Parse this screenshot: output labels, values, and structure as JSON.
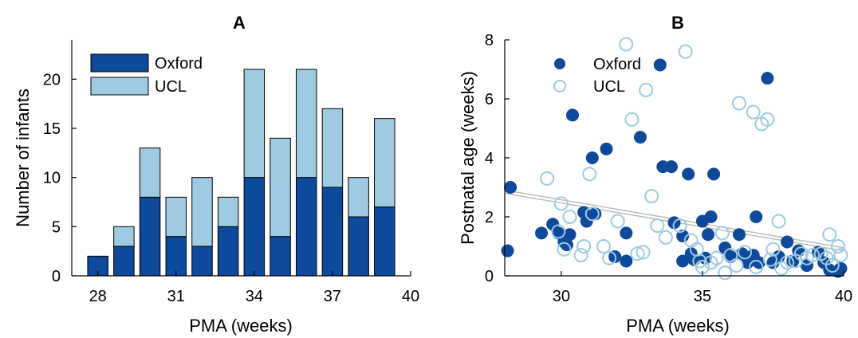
{
  "colors": {
    "oxford": "#0d4a9b",
    "ucl": "#9ecbe1",
    "fit_line": "#bdbdbd"
  },
  "chart_data": [
    {
      "type": "bar",
      "stacked": true,
      "title": "A",
      "xlabel": "PMA (weeks)",
      "ylabel": "Number of infants",
      "x": [
        28,
        29,
        30,
        31,
        32,
        33,
        34,
        35,
        36,
        37,
        38,
        39
      ],
      "xlim": [
        27,
        40
      ],
      "ylim": [
        0,
        24
      ],
      "xticks": [
        28,
        31,
        34,
        37,
        40
      ],
      "yticks": [
        0,
        5,
        10,
        15,
        20
      ],
      "legend_position": "top-left",
      "series": [
        {
          "name": "Oxford",
          "values": [
            2,
            3,
            8,
            4,
            3,
            5,
            10,
            4,
            10,
            9,
            6,
            7
          ]
        },
        {
          "name": "UCL",
          "values": [
            0,
            2,
            5,
            4,
            7,
            3,
            11,
            10,
            11,
            8,
            4,
            9
          ]
        }
      ]
    },
    {
      "type": "scatter",
      "title": "B",
      "xlabel": "PMA (weeks)",
      "ylabel": "Postnatal age (weeks)",
      "xlim": [
        28,
        40
      ],
      "ylim": [
        0,
        8
      ],
      "xticks": [
        30,
        35,
        40
      ],
      "yticks": [
        0,
        2,
        4,
        6,
        8
      ],
      "legend_position": "top-left",
      "fit_line": {
        "x": [
          28,
          40
        ],
        "y": [
          2.85,
          0.9
        ]
      },
      "series": [
        {
          "name": "Oxford",
          "marker": "filled-circle",
          "points": [
            [
              28.1,
              0.85
            ],
            [
              28.2,
              3.0
            ],
            [
              29.3,
              1.45
            ],
            [
              29.7,
              1.75
            ],
            [
              29.9,
              1.45
            ],
            [
              30.1,
              1.15
            ],
            [
              30.2,
              1.05
            ],
            [
              30.3,
              1.4
            ],
            [
              30.4,
              5.45
            ],
            [
              30.8,
              2.15
            ],
            [
              30.9,
              1.85
            ],
            [
              31.1,
              4.0
            ],
            [
              31.2,
              2.1
            ],
            [
              31.6,
              4.3
            ],
            [
              31.9,
              0.65
            ],
            [
              32.3,
              1.45
            ],
            [
              32.3,
              0.5
            ],
            [
              32.8,
              4.7
            ],
            [
              33.5,
              7.15
            ],
            [
              33.6,
              3.7
            ],
            [
              33.9,
              3.7
            ],
            [
              34.0,
              1.8
            ],
            [
              34.3,
              1.35
            ],
            [
              34.3,
              0.5
            ],
            [
              34.5,
              3.45
            ],
            [
              34.6,
              0.75
            ],
            [
              34.7,
              0.55
            ],
            [
              35.0,
              1.85
            ],
            [
              35.1,
              0.6
            ],
            [
              35.2,
              1.4
            ],
            [
              35.3,
              2.0
            ],
            [
              35.4,
              3.45
            ],
            [
              35.8,
              0.95
            ],
            [
              36.0,
              0.65
            ],
            [
              36.3,
              1.4
            ],
            [
              36.4,
              0.75
            ],
            [
              36.6,
              0.45
            ],
            [
              36.8,
              0.7
            ],
            [
              36.9,
              2.0
            ],
            [
              37.0,
              0.45
            ],
            [
              37.3,
              6.7
            ],
            [
              37.5,
              0.45
            ],
            [
              37.7,
              0.65
            ],
            [
              38.0,
              1.15
            ],
            [
              38.2,
              0.5
            ],
            [
              38.4,
              0.85
            ],
            [
              38.7,
              0.35
            ],
            [
              39.1,
              0.8
            ],
            [
              39.3,
              0.45
            ],
            [
              39.5,
              0.2
            ],
            [
              39.8,
              0.15
            ],
            [
              39.9,
              0.25
            ]
          ]
        },
        {
          "name": "UCL",
          "marker": "open-circle",
          "points": [
            [
              29.5,
              3.3
            ],
            [
              29.9,
              1.5
            ],
            [
              30.0,
              2.45
            ],
            [
              30.1,
              0.9
            ],
            [
              30.3,
              2.0
            ],
            [
              30.7,
              0.7
            ],
            [
              30.8,
              1.0
            ],
            [
              31.0,
              3.45
            ],
            [
              31.1,
              2.1
            ],
            [
              31.5,
              1.0
            ],
            [
              31.7,
              0.6
            ],
            [
              32.0,
              1.85
            ],
            [
              32.3,
              7.85
            ],
            [
              32.5,
              5.3
            ],
            [
              32.7,
              0.75
            ],
            [
              32.9,
              0.8
            ],
            [
              33.0,
              6.3
            ],
            [
              33.2,
              2.7
            ],
            [
              33.4,
              1.7
            ],
            [
              33.7,
              1.3
            ],
            [
              34.2,
              1.7
            ],
            [
              34.4,
              7.6
            ],
            [
              34.6,
              1.2
            ],
            [
              34.8,
              0.9
            ],
            [
              34.9,
              0.5
            ],
            [
              35.0,
              0.3
            ],
            [
              35.3,
              0.45
            ],
            [
              35.5,
              0.6
            ],
            [
              35.7,
              1.45
            ],
            [
              35.8,
              0.1
            ],
            [
              36.0,
              0.7
            ],
            [
              36.2,
              0.35
            ],
            [
              36.3,
              5.85
            ],
            [
              36.5,
              0.8
            ],
            [
              36.8,
              5.55
            ],
            [
              36.9,
              0.3
            ],
            [
              37.1,
              5.15
            ],
            [
              37.3,
              5.3
            ],
            [
              37.4,
              0.55
            ],
            [
              37.5,
              0.9
            ],
            [
              37.7,
              1.85
            ],
            [
              37.8,
              0.25
            ],
            [
              38.0,
              0.45
            ],
            [
              38.3,
              0.5
            ],
            [
              38.5,
              0.75
            ],
            [
              38.7,
              0.6
            ],
            [
              38.9,
              0.7
            ],
            [
              39.2,
              0.75
            ],
            [
              39.4,
              0.6
            ],
            [
              39.5,
              1.4
            ],
            [
              39.6,
              0.35
            ],
            [
              39.8,
              1.0
            ],
            [
              39.9,
              0.7
            ]
          ]
        }
      ]
    }
  ]
}
